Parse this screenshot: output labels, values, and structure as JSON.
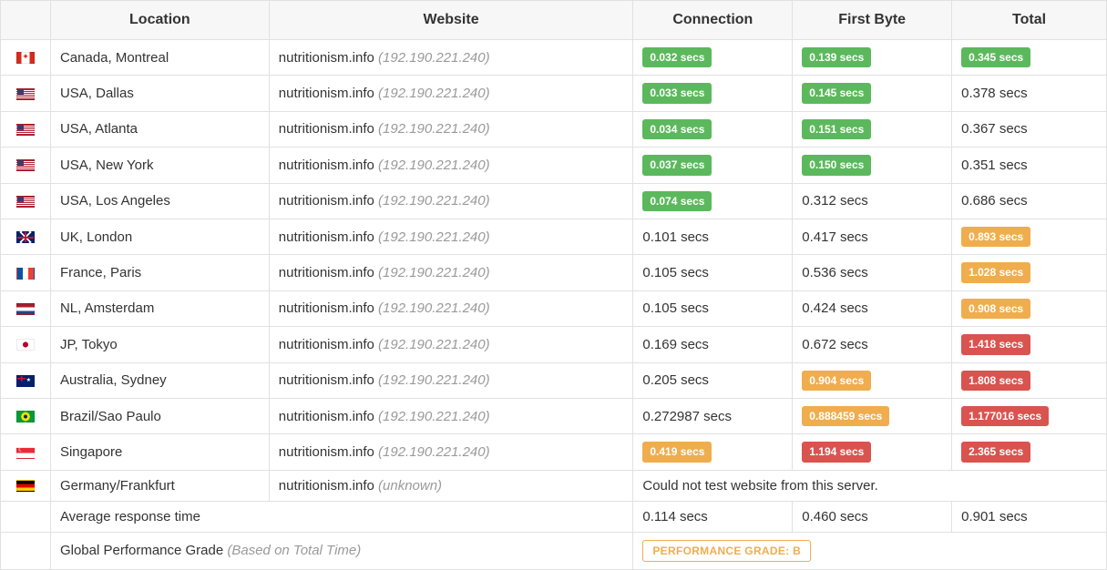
{
  "colors": {
    "badge_green": "#5cb85c",
    "badge_orange": "#f0ad4e",
    "badge_red": "#d9534f",
    "header_bg": "#f7f7f7",
    "border": "#e1e1e1",
    "text": "#333333",
    "muted": "#9a9a9a"
  },
  "columns": {
    "location": "Location",
    "website": "Website",
    "connection": "Connection",
    "first_byte": "First Byte",
    "total": "Total"
  },
  "website": {
    "domain": "nutritionism.info",
    "ip": "(192.190.221.240)",
    "ip_unknown": "(unknown)"
  },
  "rows": [
    {
      "flag": "ca",
      "location": "Canada, Montreal",
      "conn": {
        "text": "0.032 secs",
        "style": "green"
      },
      "fb": {
        "text": "0.139 secs",
        "style": "green"
      },
      "total": {
        "text": "0.345 secs",
        "style": "green"
      }
    },
    {
      "flag": "us",
      "location": "USA, Dallas",
      "conn": {
        "text": "0.033 secs",
        "style": "green"
      },
      "fb": {
        "text": "0.145 secs",
        "style": "green"
      },
      "total": {
        "text": "0.378 secs",
        "style": "plain"
      }
    },
    {
      "flag": "us",
      "location": "USA, Atlanta",
      "conn": {
        "text": "0.034 secs",
        "style": "green"
      },
      "fb": {
        "text": "0.151 secs",
        "style": "green"
      },
      "total": {
        "text": "0.367 secs",
        "style": "plain"
      }
    },
    {
      "flag": "us",
      "location": "USA, New York",
      "conn": {
        "text": "0.037 secs",
        "style": "green"
      },
      "fb": {
        "text": "0.150 secs",
        "style": "green"
      },
      "total": {
        "text": "0.351 secs",
        "style": "plain"
      }
    },
    {
      "flag": "us",
      "location": "USA, Los Angeles",
      "conn": {
        "text": "0.074 secs",
        "style": "green"
      },
      "fb": {
        "text": "0.312 secs",
        "style": "plain"
      },
      "total": {
        "text": "0.686 secs",
        "style": "plain"
      }
    },
    {
      "flag": "gb",
      "location": "UK, London",
      "conn": {
        "text": "0.101 secs",
        "style": "plain"
      },
      "fb": {
        "text": "0.417 secs",
        "style": "plain"
      },
      "total": {
        "text": "0.893 secs",
        "style": "orange"
      }
    },
    {
      "flag": "fr",
      "location": "France, Paris",
      "conn": {
        "text": "0.105 secs",
        "style": "plain"
      },
      "fb": {
        "text": "0.536 secs",
        "style": "plain"
      },
      "total": {
        "text": "1.028 secs",
        "style": "orange"
      }
    },
    {
      "flag": "nl",
      "location": "NL, Amsterdam",
      "conn": {
        "text": "0.105 secs",
        "style": "plain"
      },
      "fb": {
        "text": "0.424 secs",
        "style": "plain"
      },
      "total": {
        "text": "0.908 secs",
        "style": "orange"
      }
    },
    {
      "flag": "jp",
      "location": "JP, Tokyo",
      "conn": {
        "text": "0.169 secs",
        "style": "plain"
      },
      "fb": {
        "text": "0.672 secs",
        "style": "plain"
      },
      "total": {
        "text": "1.418 secs",
        "style": "red"
      }
    },
    {
      "flag": "au",
      "location": "Australia, Sydney",
      "conn": {
        "text": "0.205 secs",
        "style": "plain"
      },
      "fb": {
        "text": "0.904 secs",
        "style": "orange"
      },
      "total": {
        "text": "1.808 secs",
        "style": "red"
      }
    },
    {
      "flag": "br",
      "location": "Brazil/Sao Paulo",
      "conn": {
        "text": "0.272987 secs",
        "style": "plain"
      },
      "fb": {
        "text": "0.888459 secs",
        "style": "orange"
      },
      "total": {
        "text": "1.177016 secs",
        "style": "red"
      }
    },
    {
      "flag": "sg",
      "location": "Singapore",
      "conn": {
        "text": "0.419 secs",
        "style": "orange"
      },
      "fb": {
        "text": "1.194 secs",
        "style": "red"
      },
      "total": {
        "text": "2.365 secs",
        "style": "red"
      }
    }
  ],
  "error_row": {
    "flag": "de",
    "location": "Germany/Frankfurt",
    "message": "Could not test website from this server."
  },
  "average_row": {
    "label": "Average response time",
    "conn": "0.114 secs",
    "fb": "0.460 secs",
    "total": "0.901 secs"
  },
  "grade_row": {
    "label": "Global Performance Grade ",
    "label_note": "(Based on Total Time)",
    "badge_text": "PERFORMANCE GRADE:  B"
  }
}
